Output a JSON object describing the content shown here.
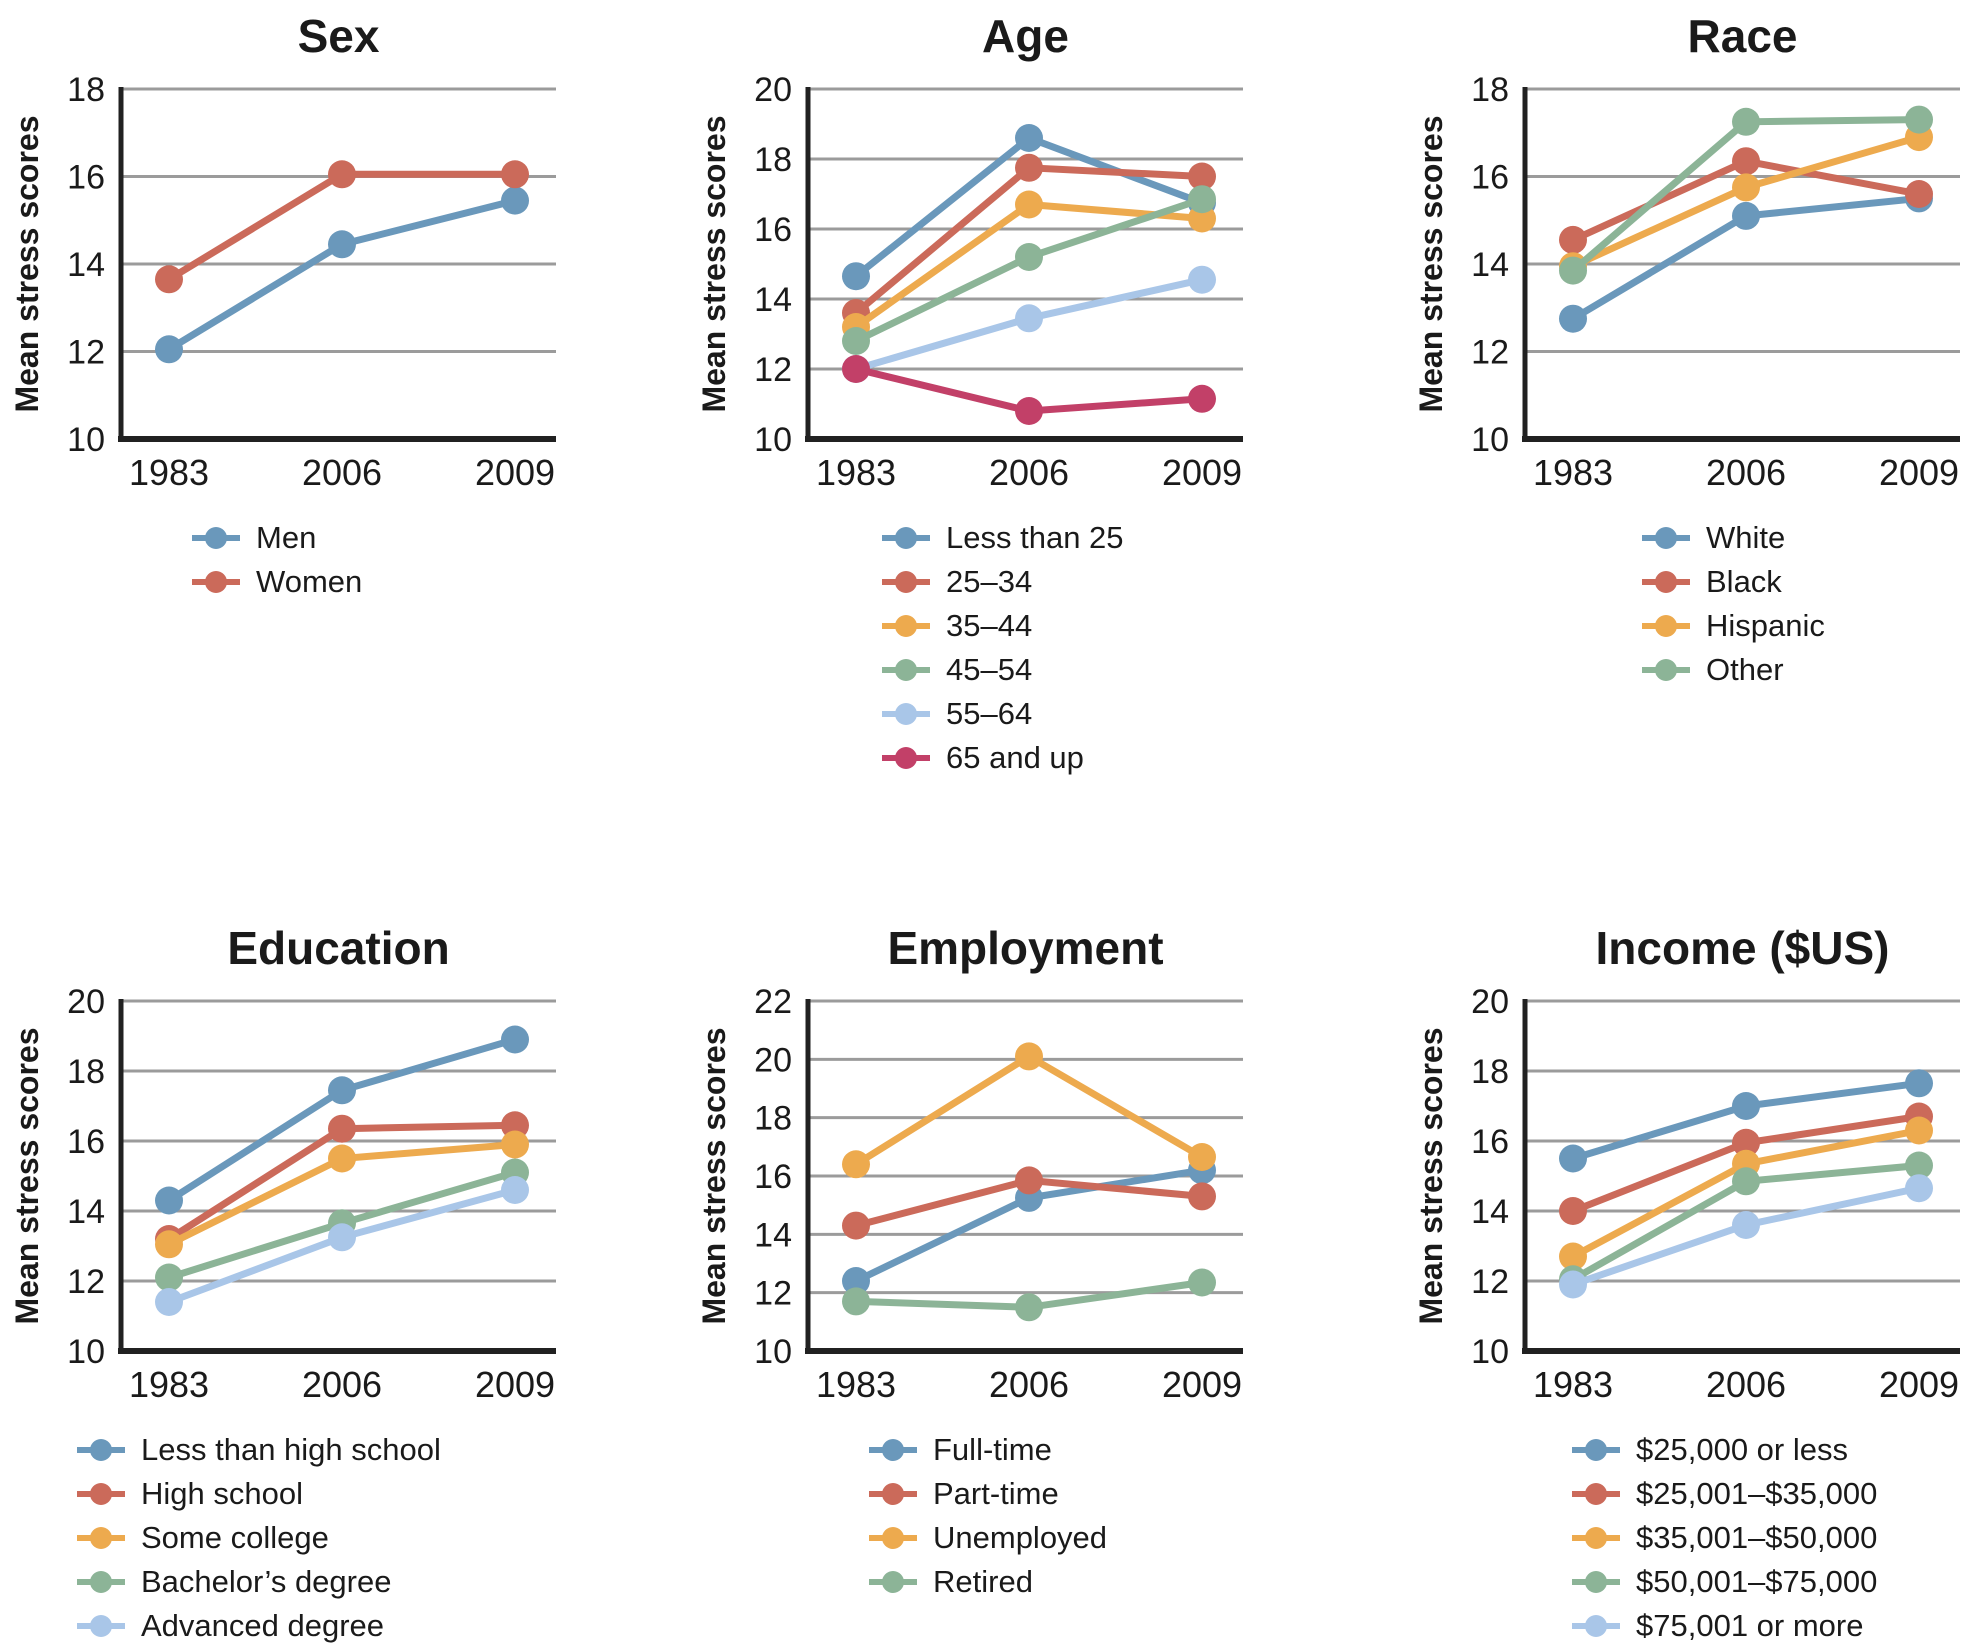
{
  "figure_ylabel": "Mean stress scores",
  "palette": {
    "blue": "#6a98bb",
    "red": "#cb6a5a",
    "orange": "#edaa4e",
    "green": "#8cb497",
    "lightblue": "#a9c6e8",
    "crimson": "#c24068"
  },
  "style": {
    "grid": "#9b9b9b",
    "axis": "#212121",
    "text": "#1a1a1a",
    "background": "#ffffff"
  },
  "chart_data": [
    {
      "type": "line",
      "title": "Sex",
      "xlabel": "",
      "ylabel": "Mean stress scores",
      "categories": [
        "1983",
        "2006",
        "2009"
      ],
      "ylim": [
        10,
        18
      ],
      "ytick_step": 2,
      "grid": true,
      "legend_position": "below",
      "series": [
        {
          "name": "Men",
          "color": "blue",
          "values": [
            12.05,
            14.45,
            15.45
          ]
        },
        {
          "name": "Women",
          "color": "red",
          "values": [
            13.65,
            16.05,
            16.05
          ]
        }
      ]
    },
    {
      "type": "line",
      "title": "Age",
      "xlabel": "",
      "ylabel": "Mean stress scores",
      "categories": [
        "1983",
        "2006",
        "2009"
      ],
      "ylim": [
        10,
        20
      ],
      "ytick_step": 2,
      "grid": true,
      "legend_position": "below",
      "series": [
        {
          "name": "Less than 25",
          "color": "blue",
          "values": [
            14.65,
            18.6,
            16.75
          ]
        },
        {
          "name": "25–34",
          "color": "red",
          "values": [
            13.6,
            17.75,
            17.5
          ]
        },
        {
          "name": "35–44",
          "color": "orange",
          "values": [
            13.2,
            16.7,
            16.3
          ]
        },
        {
          "name": "45–54",
          "color": "green",
          "values": [
            12.8,
            15.2,
            16.85
          ]
        },
        {
          "name": "55–64",
          "color": "lightblue",
          "values": [
            12.0,
            13.45,
            14.55
          ]
        },
        {
          "name": "65 and up",
          "color": "crimson",
          "values": [
            12.0,
            10.8,
            11.15
          ]
        }
      ]
    },
    {
      "type": "line",
      "title": "Race",
      "xlabel": "",
      "ylabel": "Mean stress scores",
      "categories": [
        "1983",
        "2006",
        "2009"
      ],
      "ylim": [
        10,
        18
      ],
      "ytick_step": 2,
      "grid": true,
      "legend_position": "below",
      "series": [
        {
          "name": "White",
          "color": "blue",
          "values": [
            12.75,
            15.1,
            15.5
          ]
        },
        {
          "name": "Black",
          "color": "red",
          "values": [
            14.55,
            16.35,
            15.6
          ]
        },
        {
          "name": "Hispanic",
          "color": "orange",
          "values": [
            13.95,
            15.75,
            16.9
          ]
        },
        {
          "name": "Other",
          "color": "green",
          "values": [
            13.85,
            17.25,
            17.3
          ]
        }
      ]
    },
    {
      "type": "line",
      "title": "Education",
      "xlabel": "",
      "ylabel": "Mean stress scores",
      "categories": [
        "1983",
        "2006",
        "2009"
      ],
      "ylim": [
        10,
        20
      ],
      "ytick_step": 2,
      "grid": true,
      "legend_position": "below",
      "series": [
        {
          "name": "Less than high school",
          "color": "blue",
          "values": [
            14.3,
            17.45,
            18.9
          ]
        },
        {
          "name": "High school",
          "color": "red",
          "values": [
            13.2,
            16.35,
            16.45
          ]
        },
        {
          "name": "Some college",
          "color": "orange",
          "values": [
            13.05,
            15.5,
            15.9
          ]
        },
        {
          "name": "Bachelor’s degree",
          "color": "green",
          "values": [
            12.1,
            13.65,
            15.1
          ]
        },
        {
          "name": "Advanced degree",
          "color": "lightblue",
          "values": [
            11.4,
            13.25,
            14.6
          ]
        }
      ]
    },
    {
      "type": "line",
      "title": "Employment",
      "xlabel": "",
      "ylabel": "Mean stress scores",
      "categories": [
        "1983",
        "2006",
        "2009"
      ],
      "ylim": [
        10,
        22
      ],
      "ytick_step": 2,
      "grid": true,
      "legend_position": "below",
      "series": [
        {
          "name": "Full-time",
          "color": "blue",
          "values": [
            12.4,
            15.25,
            16.2
          ]
        },
        {
          "name": "Part-time",
          "color": "red",
          "values": [
            14.3,
            15.85,
            15.3
          ]
        },
        {
          "name": "Unemployed",
          "color": "orange",
          "values": [
            16.4,
            20.1,
            16.65
          ]
        },
        {
          "name": "Retired",
          "color": "green",
          "values": [
            11.7,
            11.5,
            12.35
          ]
        }
      ]
    },
    {
      "type": "line",
      "title": "Income ($US)",
      "xlabel": "",
      "ylabel": "Mean stress scores",
      "categories": [
        "1983",
        "2006",
        "2009"
      ],
      "ylim": [
        10,
        20
      ],
      "ytick_step": 2,
      "grid": true,
      "legend_position": "below",
      "series": [
        {
          "name": "$25,000 or less",
          "color": "blue",
          "values": [
            15.5,
            17.0,
            17.65
          ]
        },
        {
          "name": "$25,001–$35,000",
          "color": "red",
          "values": [
            14.0,
            15.95,
            16.7
          ]
        },
        {
          "name": "$35,001–$50,000",
          "color": "orange",
          "values": [
            12.7,
            15.35,
            16.3
          ]
        },
        {
          "name": "$50,001–$75,000",
          "color": "green",
          "values": [
            12.05,
            14.85,
            15.3
          ]
        },
        {
          "name": "$75,001 or more",
          "color": "lightblue",
          "values": [
            11.9,
            13.6,
            14.65
          ]
        }
      ]
    }
  ]
}
